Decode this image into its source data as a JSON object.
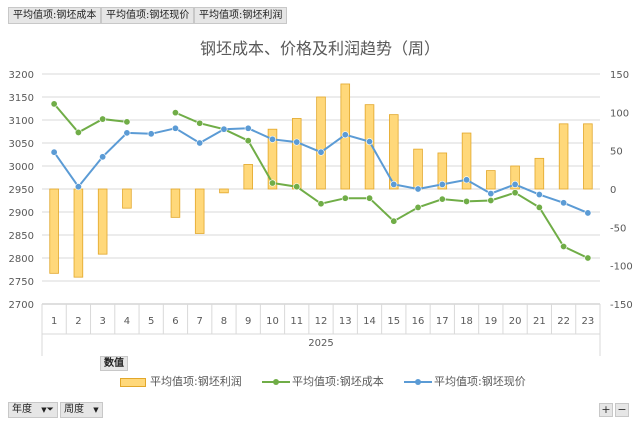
{
  "field_buttons": [
    "平均值项:钢坯成本",
    "平均值项:钢坯现价",
    "平均值项:钢坯利润"
  ],
  "value_tag": "数值",
  "filters": {
    "year": "年度",
    "week": "周度"
  },
  "zoom": {
    "plus": "+",
    "minus": "−"
  },
  "colors": {
    "bar_fill": "#ffd87a",
    "bar_stroke": "#e2a72a",
    "cost": "#70ad47",
    "price": "#5b9bd5"
  },
  "chart_data": {
    "type": "bar",
    "title": "钢坯成本、价格及利润趋势（周）",
    "categories": [
      "1",
      "2",
      "3",
      "4",
      "5",
      "6",
      "7",
      "8",
      "9",
      "10",
      "11",
      "12",
      "13",
      "14",
      "15",
      "16",
      "17",
      "18",
      "19",
      "20",
      "21",
      "22",
      "23"
    ],
    "group_label": "2025",
    "y_left": {
      "min": 2700,
      "max": 3200,
      "step": 50
    },
    "y_right": {
      "min": -150,
      "max": 150,
      "step": 50
    },
    "series": [
      {
        "name": "平均值项:钢坯利润",
        "type": "bar",
        "axis": "right",
        "values": [
          -110,
          -115,
          -85,
          -25,
          null,
          -37,
          -58,
          -5,
          32,
          78,
          92,
          120,
          137,
          110,
          97,
          52,
          47,
          73,
          24,
          30,
          40,
          85,
          85
        ]
      },
      {
        "name": "平均值项:钢坯成本",
        "type": "line",
        "axis": "left",
        "values": [
          3135,
          3073,
          3102,
          3096,
          null,
          3116,
          3093,
          3080,
          3055,
          2963,
          2955,
          2918,
          2930,
          2930,
          2880,
          2910,
          2928,
          2923,
          2925,
          2942,
          2910,
          2825,
          2800
        ]
      },
      {
        "name": "平均值项:钢坯现价",
        "type": "line",
        "axis": "left",
        "values": [
          3030,
          2955,
          3020,
          3072,
          3070,
          3082,
          3050,
          3080,
          3082,
          3058,
          3052,
          3030,
          3068,
          3053,
          2960,
          2950,
          2960,
          2970,
          2940,
          2960,
          2938,
          2920,
          2898
        ]
      }
    ],
    "legend_position": "bottom",
    "grid": true
  }
}
